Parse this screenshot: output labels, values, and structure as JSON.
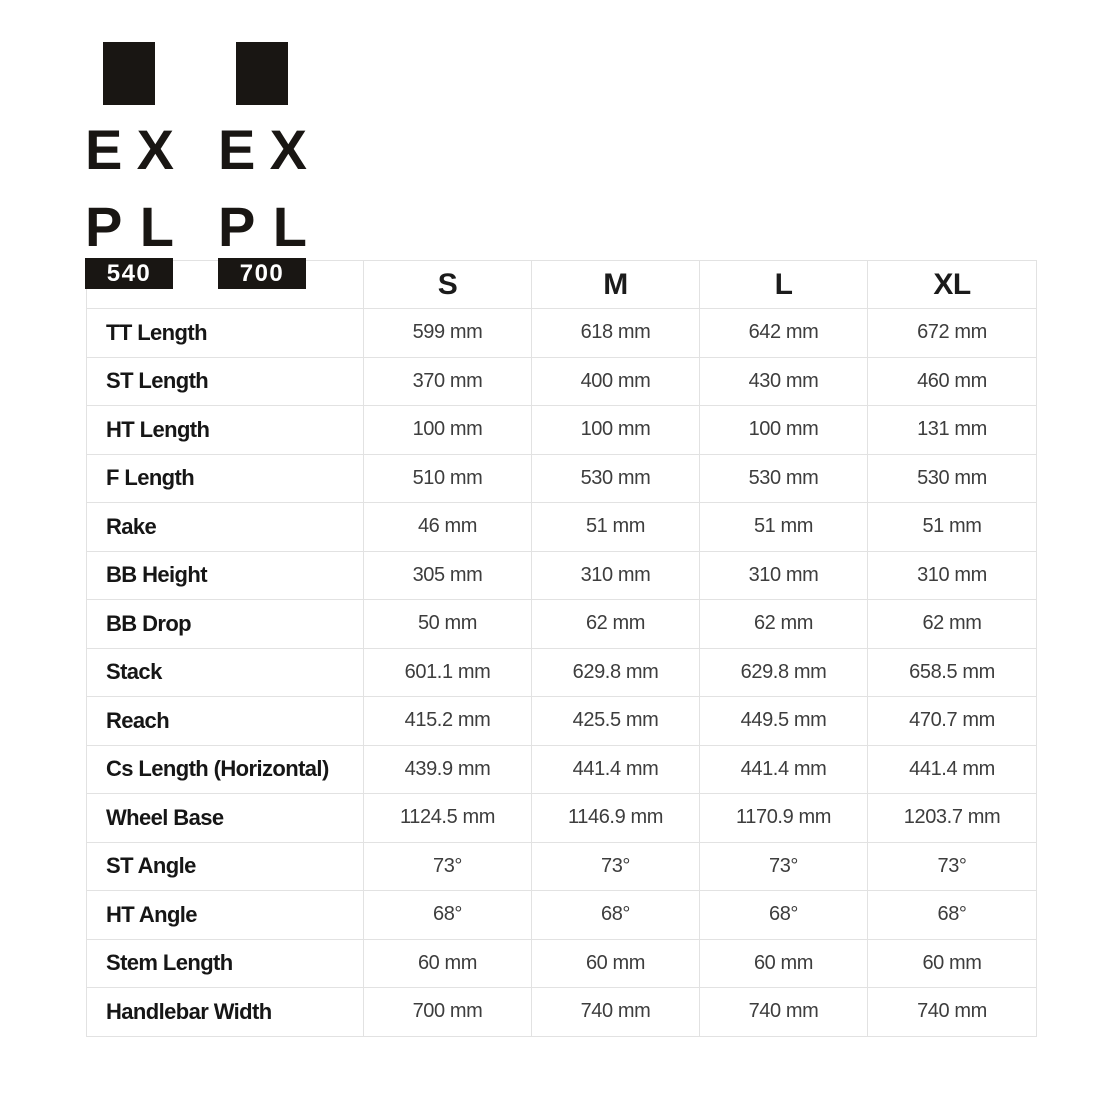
{
  "brand": {
    "logos": [
      {
        "id": "expl-540",
        "line1": [
          "E",
          "X"
        ],
        "line2": [
          "P",
          "L"
        ],
        "badge": "540"
      },
      {
        "id": "expl-700",
        "line1": [
          "E",
          "X"
        ],
        "line2": [
          "P",
          "L"
        ],
        "badge": "700"
      }
    ]
  },
  "colors": {
    "ink": "#191613",
    "header_text": "#1b1b1b",
    "label_text": "#161616",
    "value_text": "#3d3d3d",
    "grid_line": "#e2e2e2",
    "badge_bg": "#191613",
    "badge_text": "#ffffff",
    "background": "#ffffff"
  },
  "chart_data": {
    "type": "table",
    "title": "EXPL 540 / EXPL 700 frame geometry by size",
    "columns": [
      "S",
      "M",
      "L",
      "XL"
    ],
    "row_labels": [
      "TT Length",
      "ST Length",
      "HT Length",
      "F Length",
      "Rake",
      "BB Height",
      "BB Drop",
      "Stack",
      "Reach",
      "Cs Length (Horizontal)",
      "Wheel Base",
      "ST Angle",
      "HT Angle",
      "Stem Length",
      "Handlebar Width"
    ],
    "rows": [
      [
        "599 mm",
        "618 mm",
        "642 mm",
        "672 mm"
      ],
      [
        "370 mm",
        "400 mm",
        "430 mm",
        "460 mm"
      ],
      [
        "100 mm",
        "100 mm",
        "100 mm",
        "131 mm"
      ],
      [
        "510 mm",
        "530 mm",
        "530 mm",
        "530 mm"
      ],
      [
        "46 mm",
        "51 mm",
        "51 mm",
        "51 mm"
      ],
      [
        "305 mm",
        "310 mm",
        "310 mm",
        "310 mm"
      ],
      [
        "50 mm",
        "62 mm",
        "62 mm",
        "62 mm"
      ],
      [
        "601.1 mm",
        "629.8 mm",
        "629.8 mm",
        "658.5 mm"
      ],
      [
        "415.2 mm",
        "425.5 mm",
        "449.5 mm",
        "470.7 mm"
      ],
      [
        "439.9 mm",
        "441.4 mm",
        "441.4 mm",
        "441.4 mm"
      ],
      [
        "1124.5 mm",
        "1146.9 mm",
        "1170.9 mm",
        "1203.7 mm"
      ],
      [
        "73°",
        "73°",
        "73°",
        "73°"
      ],
      [
        "68°",
        "68°",
        "68°",
        "68°"
      ],
      [
        "60 mm",
        "60 mm",
        "60 mm",
        "60 mm"
      ],
      [
        "700 mm",
        "740 mm",
        "740 mm",
        "740 mm"
      ]
    ]
  }
}
